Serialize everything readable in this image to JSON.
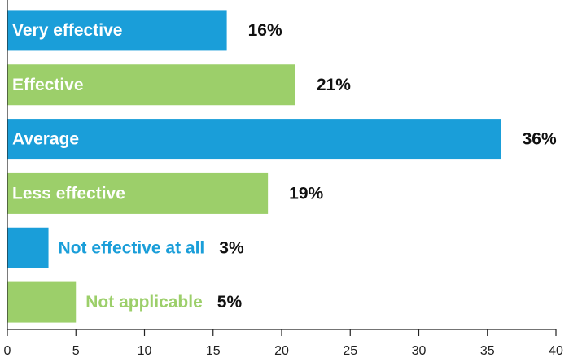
{
  "chart_data": {
    "type": "barh",
    "categories": [
      "Very effective",
      "Effective",
      "Average",
      "Less effective",
      "Not effective at all",
      "Not applicable"
    ],
    "values": [
      16,
      21,
      36,
      19,
      3,
      5
    ],
    "value_labels": [
      "16%",
      "21%",
      "36%",
      "19%",
      "3%",
      "5%"
    ],
    "colors": [
      "#1a9ed9",
      "#9ccf6a",
      "#1a9ed9",
      "#9ccf6a",
      "#1a9ed9",
      "#9ccf6a"
    ],
    "xlim": [
      0,
      40
    ],
    "xticks": [
      0,
      5,
      10,
      15,
      20,
      25,
      30,
      35,
      40
    ]
  }
}
